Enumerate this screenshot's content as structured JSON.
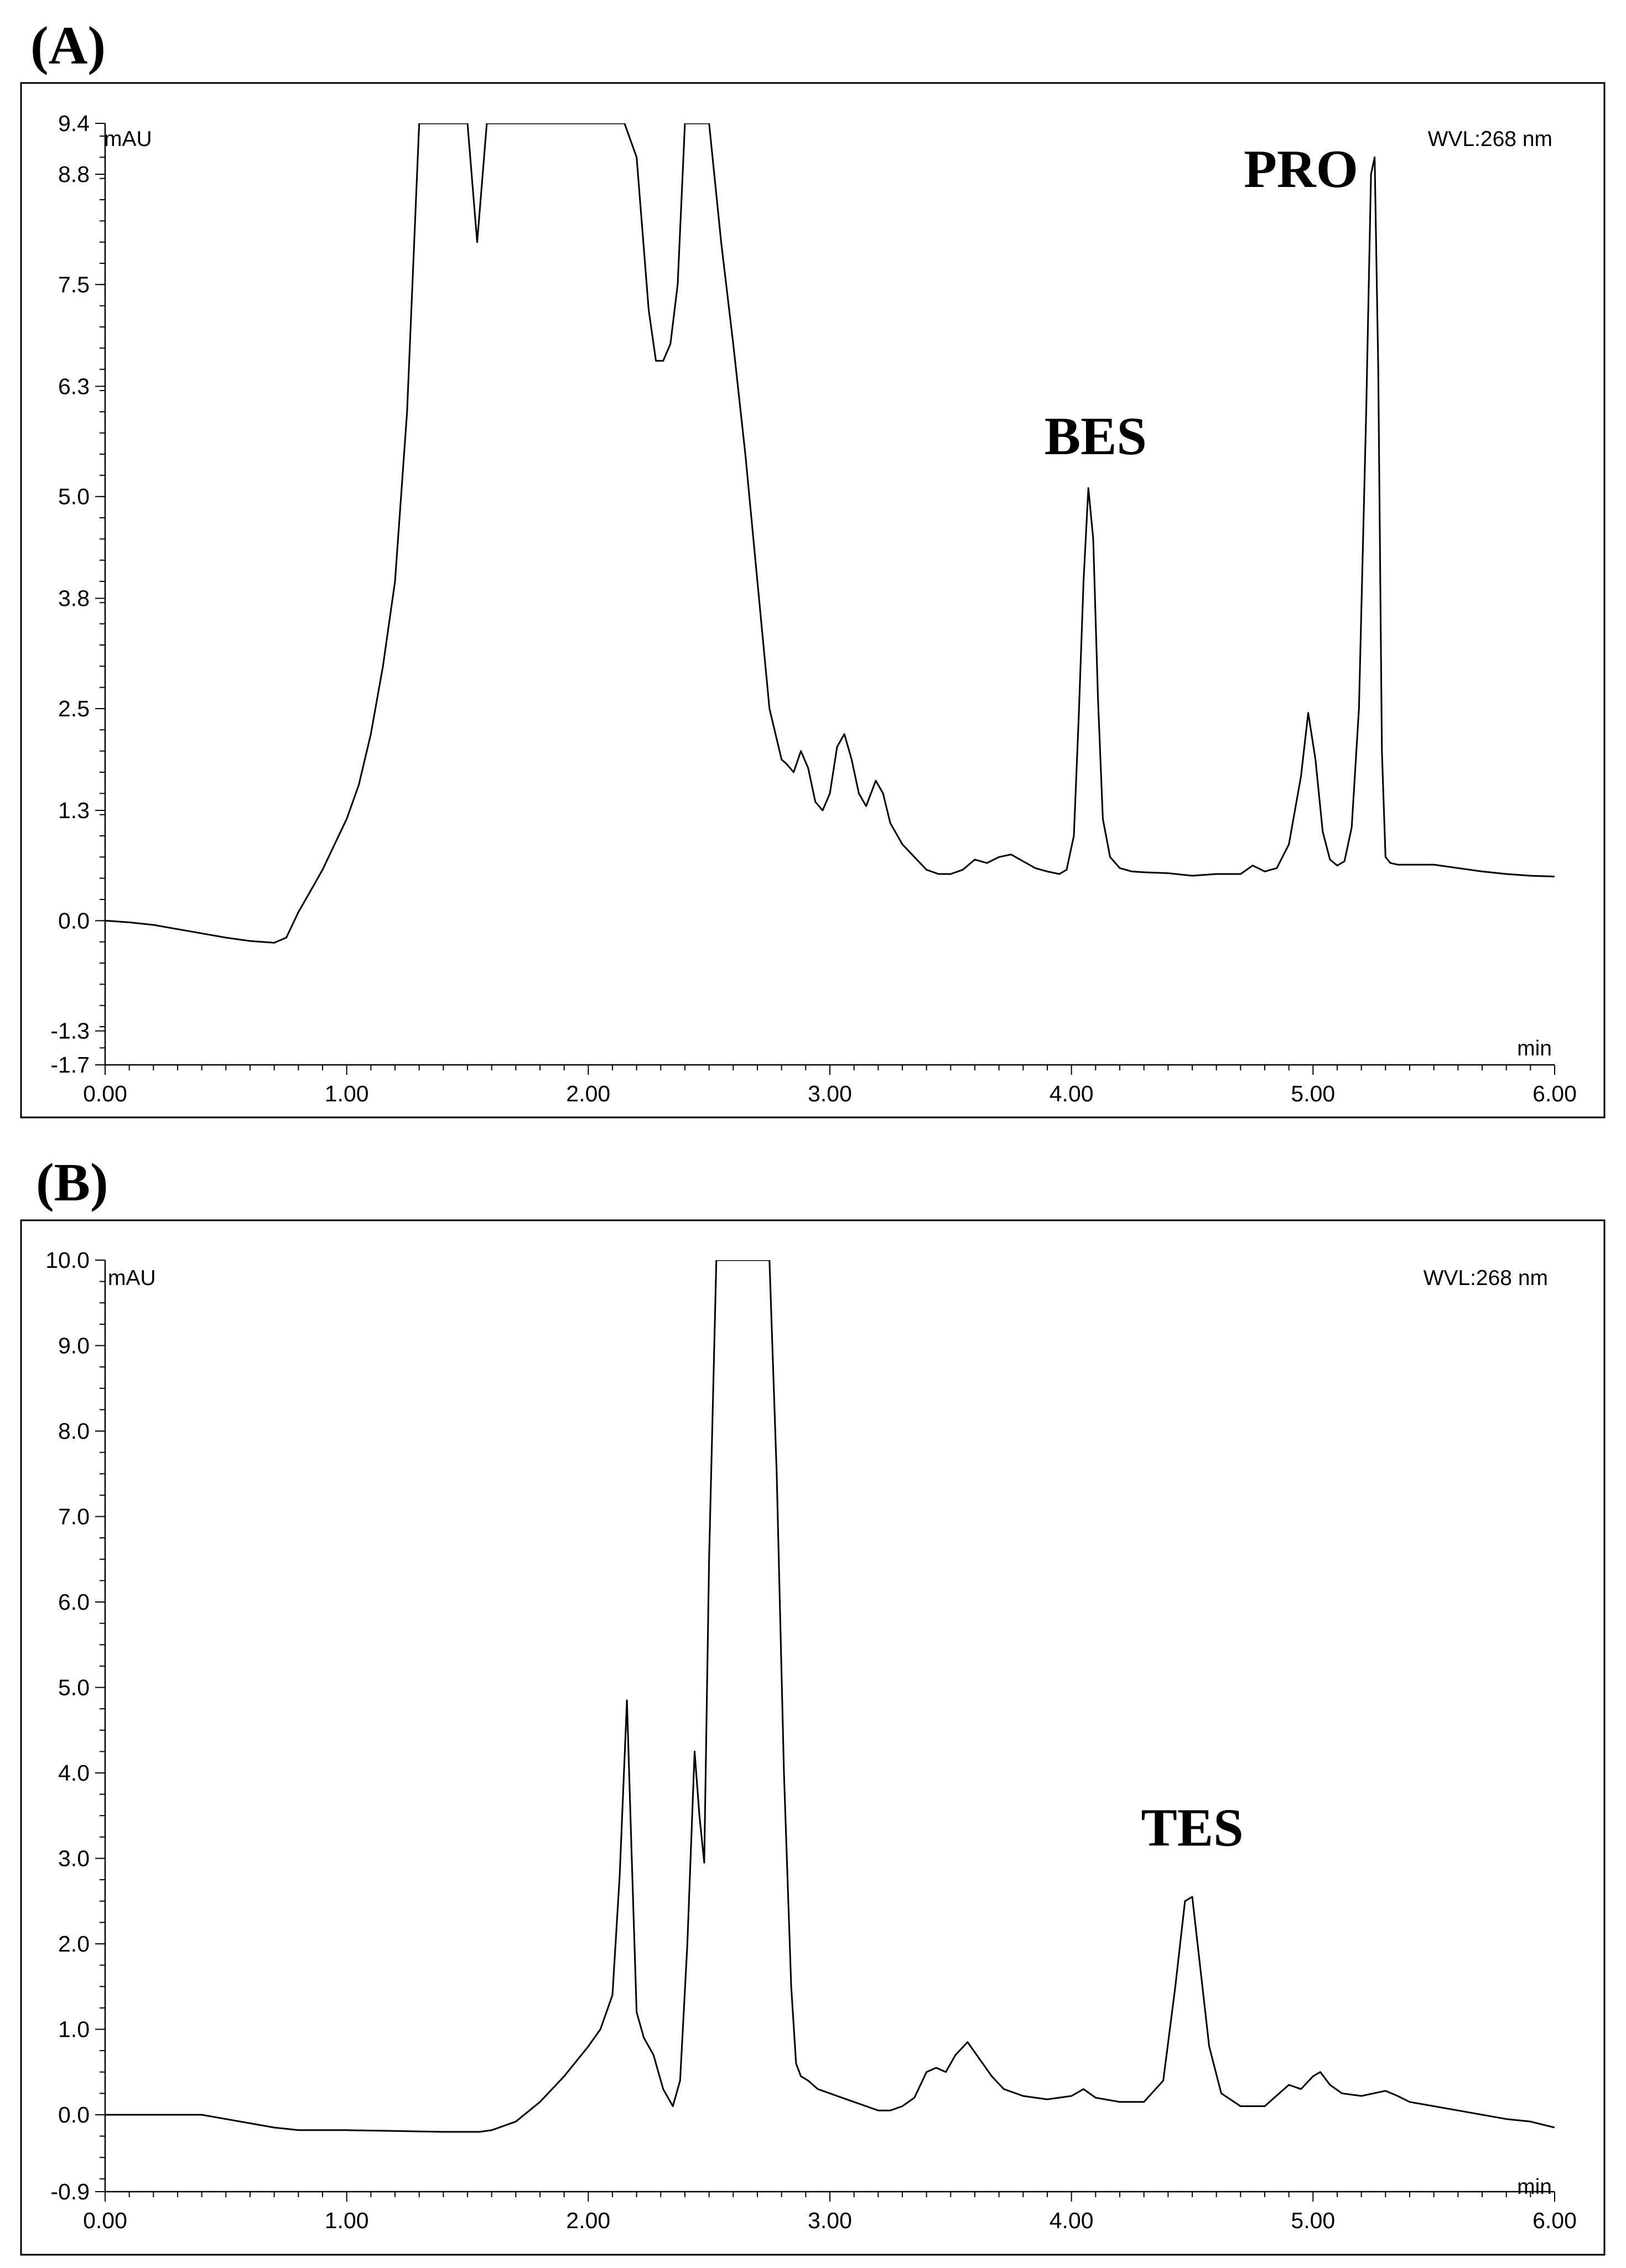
{
  "figure": {
    "panels": [
      {
        "label": "(A)",
        "y_unit": "mAU",
        "x_unit": "min",
        "wavelength": "WVL:268 nm"
      },
      {
        "label": "(B)",
        "y_unit": "mAU",
        "x_unit": "min",
        "wavelength": "WVL:268 nm"
      }
    ]
  },
  "chart_data": [
    {
      "type": "line",
      "title": "(A)",
      "xlabel": "min",
      "ylabel": "mAU",
      "xlim": [
        0,
        6
      ],
      "ylim": [
        -1.7,
        9.4
      ],
      "x_ticks": [
        "0.00",
        "1.00",
        "2.00",
        "3.00",
        "4.00",
        "5.00",
        "6.00"
      ],
      "y_ticks": [
        {
          "value": 9.4,
          "label": "9.4"
        },
        {
          "value": 8.8,
          "label": "8.8"
        },
        {
          "value": 7.5,
          "label": "7.5"
        },
        {
          "value": 6.3,
          "label": "6.3"
        },
        {
          "value": 5.0,
          "label": "5.0"
        },
        {
          "value": 3.8,
          "label": "3.8"
        },
        {
          "value": 2.5,
          "label": "2.5"
        },
        {
          "value": 1.3,
          "label": "1.3"
        },
        {
          "value": 0.0,
          "label": "0.0"
        },
        {
          "value": -1.3,
          "label": "-1.3"
        },
        {
          "value": -1.7,
          "label": "-1.7"
        }
      ],
      "annotations": [
        {
          "text": "BES",
          "x": 4.1,
          "y": 5.5
        },
        {
          "text": "PRO",
          "x": 4.95,
          "y": 8.65
        }
      ],
      "series": [
        {
          "x": [
            0.0,
            0.1,
            0.2,
            0.3,
            0.4,
            0.5,
            0.6,
            0.7,
            0.75,
            0.8,
            0.85,
            0.9,
            0.95,
            1.0,
            1.05,
            1.1,
            1.15,
            1.2,
            1.25,
            1.3,
            1.35,
            1.4,
            1.45,
            1.5,
            1.52,
            1.54,
            1.56,
            1.58,
            1.6,
            1.65,
            1.7,
            1.8,
            1.9,
            2.0,
            2.1,
            2.15,
            2.2,
            2.25,
            2.28,
            2.31,
            2.34,
            2.37,
            2.4,
            2.45,
            2.5,
            2.55,
            2.6,
            2.65,
            2.7,
            2.75,
            2.8,
            2.82,
            2.85,
            2.88,
            2.91,
            2.94,
            2.97,
            3.0,
            3.03,
            3.06,
            3.09,
            3.12,
            3.15,
            3.19,
            3.22,
            3.25,
            3.3,
            3.35,
            3.4,
            3.45,
            3.5,
            3.55,
            3.6,
            3.65,
            3.7,
            3.75,
            3.8,
            3.85,
            3.9,
            3.95,
            3.98,
            4.01,
            4.03,
            4.05,
            4.07,
            4.09,
            4.11,
            4.13,
            4.16,
            4.2,
            4.25,
            4.3,
            4.4,
            4.5,
            4.6,
            4.7,
            4.75,
            4.8,
            4.85,
            4.9,
            4.95,
            4.98,
            5.01,
            5.04,
            5.07,
            5.1,
            5.13,
            5.16,
            5.19,
            5.22,
            5.24,
            5.255,
            5.27,
            5.285,
            5.3,
            5.32,
            5.35,
            5.4,
            5.45,
            5.5,
            5.6,
            5.7,
            5.8,
            5.9,
            6.0
          ],
          "y": [
            0.0,
            -0.02,
            -0.05,
            -0.1,
            -0.15,
            -0.2,
            -0.24,
            -0.26,
            -0.2,
            0.1,
            0.35,
            0.6,
            0.9,
            1.2,
            1.6,
            2.2,
            3.0,
            4.0,
            6.0,
            9.4,
            9.4,
            9.4,
            9.4,
            9.4,
            8.7,
            8.0,
            8.7,
            9.4,
            9.4,
            9.4,
            9.4,
            9.4,
            9.4,
            9.4,
            9.4,
            9.4,
            9.0,
            7.2,
            6.6,
            6.6,
            6.8,
            7.5,
            9.4,
            9.4,
            9.4,
            8.0,
            6.8,
            5.5,
            4.0,
            2.5,
            1.9,
            1.85,
            1.75,
            2.0,
            1.8,
            1.4,
            1.3,
            1.5,
            2.05,
            2.2,
            1.9,
            1.5,
            1.35,
            1.65,
            1.5,
            1.15,
            0.9,
            0.75,
            0.6,
            0.55,
            0.55,
            0.6,
            0.72,
            0.68,
            0.75,
            0.78,
            0.7,
            0.62,
            0.58,
            0.55,
            0.6,
            1.0,
            2.4,
            4.0,
            5.1,
            4.5,
            2.6,
            1.2,
            0.75,
            0.62,
            0.58,
            0.57,
            0.56,
            0.53,
            0.55,
            0.55,
            0.65,
            0.58,
            0.62,
            0.9,
            1.7,
            2.45,
            1.9,
            1.05,
            0.72,
            0.65,
            0.7,
            1.1,
            2.5,
            6.0,
            8.8,
            9.0,
            6.5,
            2.0,
            0.75,
            0.68,
            0.66,
            0.66,
            0.66,
            0.66,
            0.62,
            0.58,
            0.55,
            0.53,
            0.52
          ]
        }
      ]
    },
    {
      "type": "line",
      "title": "(B)",
      "xlabel": "min",
      "ylabel": "mAU",
      "xlim": [
        0,
        6
      ],
      "ylim": [
        -0.9,
        10.0
      ],
      "x_ticks": [
        "0.00",
        "1.00",
        "2.00",
        "3.00",
        "4.00",
        "5.00",
        "6.00"
      ],
      "y_ticks": [
        {
          "value": 10.0,
          "label": "10.0"
        },
        {
          "value": 9.0,
          "label": "9.0"
        },
        {
          "value": 8.0,
          "label": "8.0"
        },
        {
          "value": 7.0,
          "label": "7.0"
        },
        {
          "value": 6.0,
          "label": "6.0"
        },
        {
          "value": 5.0,
          "label": "5.0"
        },
        {
          "value": 4.0,
          "label": "4.0"
        },
        {
          "value": 3.0,
          "label": "3.0"
        },
        {
          "value": 2.0,
          "label": "2.0"
        },
        {
          "value": 1.0,
          "label": "1.0"
        },
        {
          "value": 0.0,
          "label": "0.0"
        },
        {
          "value": -0.9,
          "label": "-0.9"
        }
      ],
      "annotations": [
        {
          "text": "TES",
          "x": 4.5,
          "y": 3.15
        }
      ],
      "series": [
        {
          "x": [
            0.0,
            0.2,
            0.4,
            0.5,
            0.6,
            0.7,
            0.8,
            1.0,
            1.2,
            1.4,
            1.55,
            1.6,
            1.7,
            1.8,
            1.9,
            2.0,
            2.05,
            2.1,
            2.13,
            2.16,
            2.18,
            2.2,
            2.23,
            2.27,
            2.31,
            2.35,
            2.38,
            2.41,
            2.44,
            2.46,
            2.48,
            2.5,
            2.53,
            2.56,
            2.6,
            2.65,
            2.7,
            2.75,
            2.78,
            2.81,
            2.84,
            2.86,
            2.88,
            2.91,
            2.95,
            3.0,
            3.05,
            3.1,
            3.15,
            3.2,
            3.25,
            3.3,
            3.35,
            3.4,
            3.44,
            3.48,
            3.52,
            3.57,
            3.62,
            3.67,
            3.72,
            3.8,
            3.9,
            4.0,
            4.05,
            4.1,
            4.2,
            4.3,
            4.38,
            4.43,
            4.47,
            4.5,
            4.53,
            4.57,
            4.62,
            4.7,
            4.8,
            4.86,
            4.9,
            4.95,
            5.0,
            5.03,
            5.07,
            5.12,
            5.2,
            5.3,
            5.35,
            5.4,
            5.5,
            5.6,
            5.7,
            5.8,
            5.9,
            6.0
          ],
          "y": [
            0.0,
            0.0,
            0.0,
            -0.05,
            -0.1,
            -0.15,
            -0.18,
            -0.18,
            -0.19,
            -0.2,
            -0.2,
            -0.18,
            -0.08,
            0.15,
            0.45,
            0.8,
            1.0,
            1.4,
            2.8,
            4.85,
            3.0,
            1.2,
            0.9,
            0.7,
            0.3,
            0.1,
            0.4,
            2.0,
            4.25,
            3.5,
            2.95,
            6.5,
            10.0,
            10.0,
            10.0,
            10.0,
            10.0,
            10.0,
            7.5,
            4.0,
            1.5,
            0.6,
            0.45,
            0.4,
            0.3,
            0.25,
            0.2,
            0.15,
            0.1,
            0.05,
            0.05,
            0.1,
            0.2,
            0.5,
            0.55,
            0.5,
            0.7,
            0.85,
            0.65,
            0.45,
            0.3,
            0.22,
            0.18,
            0.22,
            0.3,
            0.2,
            0.15,
            0.15,
            0.4,
            1.5,
            2.5,
            2.55,
            1.8,
            0.8,
            0.25,
            0.1,
            0.1,
            0.25,
            0.35,
            0.3,
            0.45,
            0.5,
            0.35,
            0.25,
            0.22,
            0.28,
            0.22,
            0.15,
            0.1,
            0.05,
            0.0,
            -0.05,
            -0.08,
            -0.15
          ]
        }
      ]
    }
  ]
}
